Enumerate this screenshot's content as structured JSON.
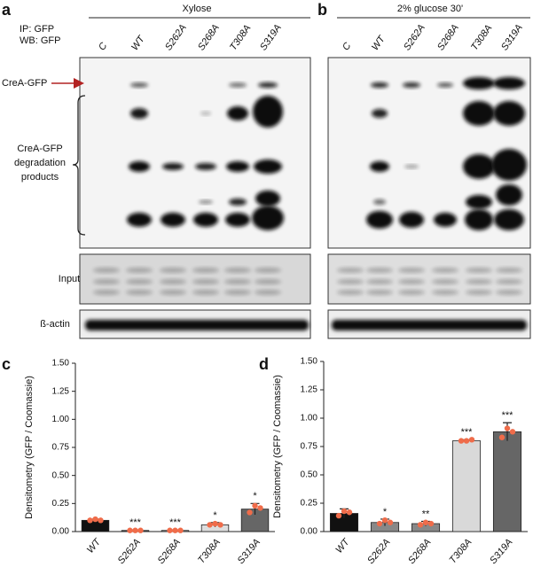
{
  "panel_a": {
    "letter": "a",
    "ip": "IP: GFP",
    "wb": "WB: GFP",
    "condition": "Xylose",
    "lanes": [
      "C",
      "WT",
      "S262A",
      "S268A",
      "T308A",
      "S319A"
    ],
    "band_label": "CreA-GFP",
    "degradation_label": [
      "CreA-GFP",
      "degradation",
      "products"
    ],
    "input_label": "Input",
    "actin_label": "ß-actin"
  },
  "panel_b": {
    "letter": "b",
    "condition": "2% glucose 30'",
    "lanes": [
      "C",
      "WT",
      "S262A",
      "S268A",
      "T308A",
      "S319A"
    ]
  },
  "chart_data": [
    {
      "type": "bar",
      "letter": "c",
      "ylabel": "Densitometry (GFP / Coomassie)",
      "categories": [
        "WT",
        "S262A",
        "S268A",
        "T308A",
        "S319A"
      ],
      "values": [
        0.1,
        0.01,
        0.01,
        0.06,
        0.2
      ],
      "errors": [
        0.01,
        0.005,
        0.005,
        0.02,
        0.05
      ],
      "points": [
        [
          0.1,
          0.11,
          0.1
        ],
        [
          0.01,
          0.01,
          0.01
        ],
        [
          0.01,
          0.01,
          0.01
        ],
        [
          0.06,
          0.07,
          0.06
        ],
        [
          0.17,
          0.23,
          0.21
        ]
      ],
      "significance": [
        null,
        "***",
        "***",
        "*",
        "*"
      ],
      "colors": [
        "#111111",
        "#555555",
        "#999999",
        "#dddddd",
        "#666666"
      ],
      "point_color": "#ef6c4a",
      "ylim": [
        0,
        1.5
      ],
      "yticks": [
        {
          "value": 0,
          "label": "0.00"
        },
        {
          "value": 0.25,
          "label": "0.25"
        },
        {
          "value": 0.5,
          "label": "0.50"
        },
        {
          "value": 0.75,
          "label": "0.75"
        },
        {
          "value": 1,
          "label": "1.00"
        },
        {
          "value": 1.25,
          "label": "1.25"
        },
        {
          "value": 1.5,
          "label": "1.50"
        }
      ]
    },
    {
      "type": "bar",
      "letter": "d",
      "ylabel": "Densitometry (GFP / Coomassie)",
      "categories": [
        "WT",
        "S262A",
        "S268A",
        "T308A",
        "S319A"
      ],
      "values": [
        0.16,
        0.08,
        0.07,
        0.8,
        0.88
      ],
      "errors": [
        0.04,
        0.03,
        0.02,
        0.01,
        0.08
      ],
      "points": [
        [
          0.14,
          0.18,
          0.17
        ],
        [
          0.07,
          0.1,
          0.08
        ],
        [
          0.06,
          0.08,
          0.07
        ],
        [
          0.8,
          0.8,
          0.81
        ],
        [
          0.83,
          0.91,
          0.88
        ]
      ],
      "significance": [
        null,
        "*",
        "**",
        "***",
        "***"
      ],
      "colors": [
        "#111111",
        "#888888",
        "#888888",
        "#d9d9d9",
        "#666666"
      ],
      "point_color": "#ef6c4a",
      "ylim": [
        0,
        1.5
      ],
      "yticks": [
        {
          "value": 0,
          "label": "0.00"
        },
        {
          "value": 0.25,
          "label": "0.25"
        },
        {
          "value": 0.5,
          "label": "0.50"
        },
        {
          "value": 0.75,
          "label": "0.75"
        },
        {
          "value": 1,
          "label": "1.00"
        },
        {
          "value": 1.25,
          "label": "1.25"
        },
        {
          "value": 1.5,
          "label": "1.50"
        }
      ]
    }
  ]
}
